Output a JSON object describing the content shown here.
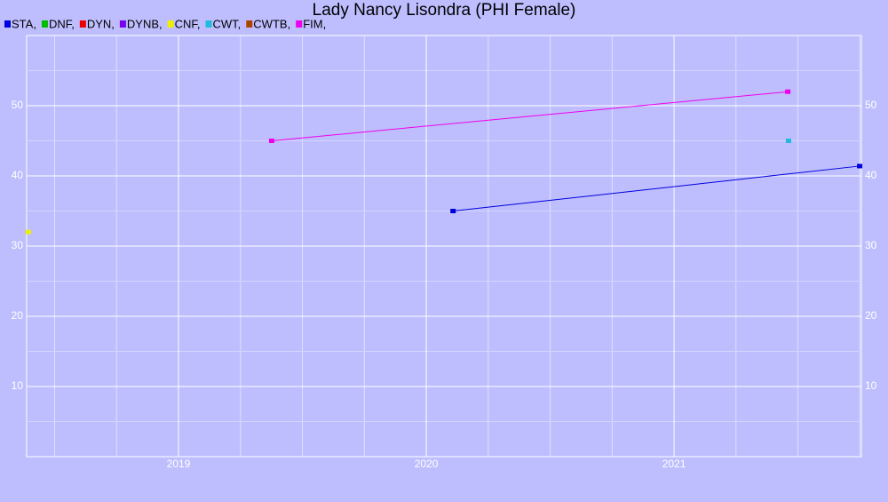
{
  "chart_data": {
    "type": "line",
    "title": "Lady Nancy Lisondra (PHI Female)",
    "xlim": [
      2018.387,
      2021.756
    ],
    "xticks": [
      2019,
      2020,
      2021
    ],
    "xminorticks": [
      2018.5,
      2018.75,
      2019.25,
      2019.5,
      2019.75,
      2020.25,
      2020.5,
      2020.75,
      2021.25,
      2021.5,
      2021.75
    ],
    "ylim": [
      0,
      60
    ],
    "yticks": [
      10,
      20,
      30,
      40,
      50
    ],
    "yminorticks": [
      5,
      15,
      25,
      35,
      45,
      55
    ],
    "grid": true,
    "legend": "top-left",
    "series": [
      {
        "name": "STA,",
        "color": "#0000dd",
        "x": [
          2020.108,
          2021.749
        ],
        "values": [
          35,
          41.4
        ]
      },
      {
        "name": "DNF,",
        "color": "#00bb00",
        "x": [],
        "values": []
      },
      {
        "name": "DYN,",
        "color": "#ee0000",
        "x": [],
        "values": []
      },
      {
        "name": "DYNB,",
        "color": "#7700ee",
        "x": [],
        "values": []
      },
      {
        "name": "CNF,",
        "color": "#eeee00",
        "x": [
          2018.394
        ],
        "values": [
          32
        ]
      },
      {
        "name": "CWT,",
        "color": "#22bbdd",
        "x": [
          2021.462
        ],
        "values": [
          45
        ]
      },
      {
        "name": "CWTB,",
        "color": "#aa4400",
        "x": [],
        "values": []
      },
      {
        "name": "FIM,",
        "color": "#ee00ee",
        "x": [
          2019.376,
          2021.459
        ],
        "values": [
          45,
          52
        ]
      }
    ]
  }
}
